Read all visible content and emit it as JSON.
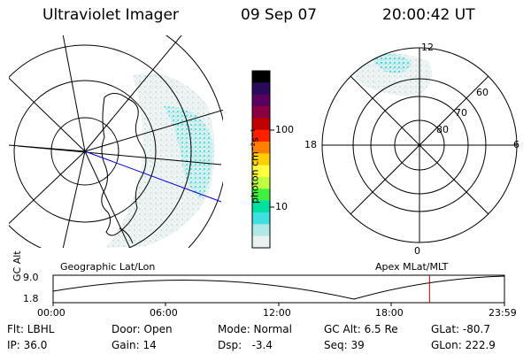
{
  "header": {
    "instrument": "Ultraviolet Imager",
    "date": "09 Sep 07",
    "time": "20:00:42 UT"
  },
  "geo_map": {
    "caption": "Geographic Lat/Lon"
  },
  "colorbar": {
    "unit_label": "photon cm⁻²s⁻¹",
    "ticks": [
      "100",
      "10"
    ],
    "colors": [
      "#000000",
      "#2a0a5a",
      "#5a0060",
      "#8a0040",
      "#c00000",
      "#ff2000",
      "#ff8000",
      "#ffd000",
      "#ffff40",
      "#c0ff40",
      "#40f040",
      "#00e0a0",
      "#40e0e0",
      "#b0e8e8",
      "#e8f0f0"
    ]
  },
  "polar_map": {
    "caption": "Apex MLat/MLT",
    "mlt_labels": {
      "top": "12",
      "bottom": "0",
      "left": "18",
      "right": "6"
    },
    "lat_labels": [
      "60",
      "70",
      "80"
    ]
  },
  "altitude_plot": {
    "y_label": "GC Alt",
    "y_ticks": [
      "9.0",
      "1.8"
    ],
    "x_ticks": [
      "00:00",
      "06:00",
      "12:00",
      "18:00",
      "23:59"
    ],
    "curve_color": "#000000",
    "marker_color": "#cc0000",
    "marker_time_fraction": 0.834
  },
  "status": {
    "row1": [
      {
        "key": "flt",
        "text": "Flt: LBHL"
      },
      {
        "key": "door",
        "text": "Door: Open"
      },
      {
        "key": "mode",
        "text": "Mode: Normal"
      },
      {
        "key": "gcalt",
        "text": "GC Alt: 6.5 Re"
      },
      {
        "key": "glat",
        "text": "GLat: -80.7"
      }
    ],
    "row2": [
      {
        "key": "ip",
        "text": "IP: 36.0"
      },
      {
        "key": "gain",
        "text": "Gain: 14"
      },
      {
        "key": "dsp",
        "text": "Dsp:   -3.4"
      },
      {
        "key": "seq",
        "text": "Seq: 39"
      },
      {
        "key": "glon",
        "text": "GLon: 222.9"
      }
    ]
  }
}
